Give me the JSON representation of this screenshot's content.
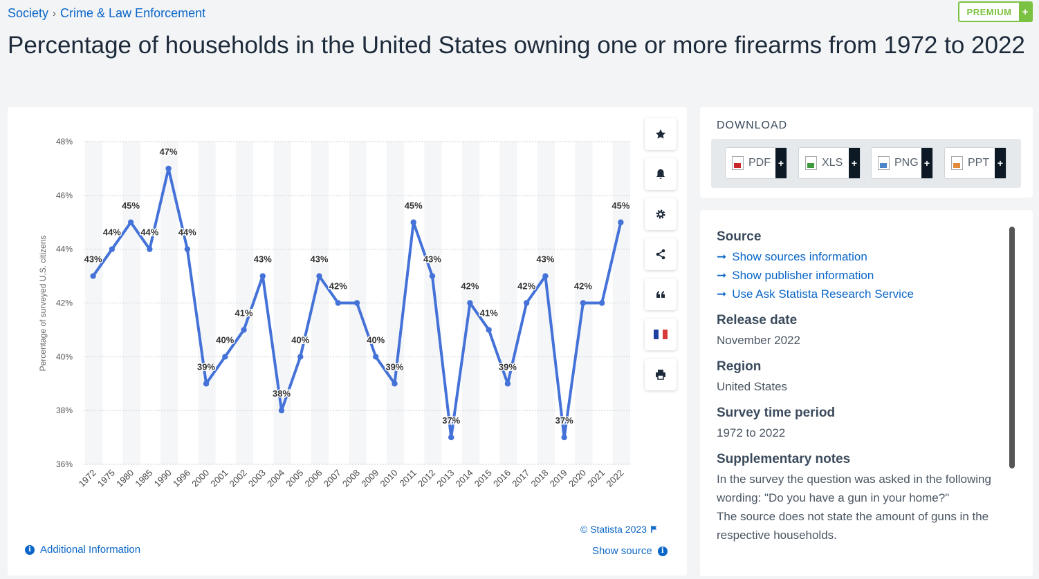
{
  "breadcrumb": {
    "item1": "Society",
    "item2": "Crime & Law Enforcement",
    "sep": "›"
  },
  "premium": {
    "label": "PREMIUM",
    "plus": "+"
  },
  "title": "Percentage of households in the United States owning one or more firearms from 1972 to 2022",
  "chart_data": {
    "type": "line",
    "title": "",
    "xlabel": "",
    "ylabel": "Percentage of surveyed U.S. citizens",
    "categories": [
      "1972",
      "1975",
      "1980",
      "1985",
      "1990",
      "1996",
      "2000",
      "2001",
      "2002",
      "2003",
      "2004",
      "2005",
      "2006",
      "2007",
      "2008",
      "2009",
      "2010",
      "2011",
      "2012",
      "2013",
      "2014",
      "2015",
      "2016",
      "2017",
      "2018",
      "2019",
      "2020",
      "2021",
      "2022"
    ],
    "series": [
      {
        "name": "",
        "values": [
          43,
          44,
          45,
          44,
          47,
          44,
          39,
          40,
          41,
          43,
          38,
          40,
          43,
          42,
          42,
          40,
          39,
          45,
          43,
          37,
          42,
          41,
          39,
          42,
          43,
          37,
          42,
          42,
          45
        ],
        "color": "#4472d8"
      }
    ],
    "data_labels": [
      "43%",
      "44%",
      "45%",
      "44%",
      "47%",
      "44%",
      "39%",
      "40%",
      "41%",
      "43%",
      "38%",
      "40%",
      "43%",
      "42%",
      "",
      "40%",
      "39%",
      "45%",
      "43%",
      "37%",
      "42%",
      "41%",
      "39%",
      "42%",
      "43%",
      "37%",
      "42%",
      "",
      "45%"
    ],
    "ylim": [
      36,
      48
    ],
    "yticks": [
      "48%",
      "46%",
      "44%",
      "42%",
      "40%",
      "38%",
      "36%"
    ],
    "grid": true,
    "legend": "none"
  },
  "tools": {
    "star": "star-icon",
    "bell": "bell-icon",
    "gear": "gear-icon",
    "share": "share-icon",
    "quote": "quote-icon",
    "flag": "flag-icon",
    "print": "print-icon"
  },
  "footer": {
    "copyright": "© Statista 2023",
    "additional": "Additional Information",
    "show_source": "Show source"
  },
  "download": {
    "title": "DOWNLOAD",
    "buttons": [
      {
        "label": "PDF",
        "color": "#c8262a"
      },
      {
        "label": "XLS",
        "color": "#3c9a3c"
      },
      {
        "label": "PNG",
        "color": "#4a86c8"
      },
      {
        "label": "PPT",
        "color": "#e08a3a"
      }
    ],
    "plus": "+"
  },
  "info": {
    "source_h": "Source",
    "links": [
      "Show sources information",
      "Show publisher information",
      "Use Ask Statista Research Service"
    ],
    "release_h": "Release date",
    "release": "November 2022",
    "region_h": "Region",
    "region": "United States",
    "period_h": "Survey time period",
    "period": "1972 to 2022",
    "notes_h": "Supplementary notes",
    "notes1": "In the survey the question was asked in the following wording: \"Do you have a gun in your home?\"",
    "notes2": "The source does not state the amount of guns in the respective households."
  }
}
